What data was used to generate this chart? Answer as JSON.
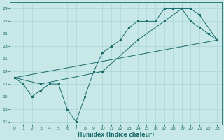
{
  "xlabel": "Humidex (Indice chaleur)",
  "bg_color": "#c8e8e8",
  "grid_color": "#aad4d4",
  "line_color": "#1a6b6b",
  "xlim": [
    -0.5,
    23.5
  ],
  "ylim": [
    10.5,
    30.0
  ],
  "yticks": [
    11,
    13,
    15,
    17,
    19,
    21,
    23,
    25,
    27,
    29
  ],
  "xticks": [
    0,
    1,
    2,
    3,
    4,
    5,
    6,
    7,
    8,
    9,
    10,
    11,
    12,
    13,
    14,
    15,
    16,
    17,
    18,
    19,
    20,
    21,
    22,
    23
  ],
  "line1_x": [
    0,
    1,
    2,
    3,
    4,
    5,
    6,
    7,
    8,
    9,
    10,
    11,
    12,
    13,
    14,
    15,
    16,
    17,
    18,
    19,
    20,
    21,
    22,
    23
  ],
  "line1_y": [
    18,
    17,
    15,
    16,
    17,
    17,
    13,
    11,
    15,
    19,
    22,
    23,
    24,
    26,
    27,
    27,
    27,
    29,
    29,
    29,
    27,
    26,
    25,
    24
  ],
  "line2_x": [
    0,
    3,
    10,
    14,
    17,
    19,
    20,
    21,
    23
  ],
  "line2_y": [
    18,
    17,
    19,
    24,
    27,
    29,
    29,
    28,
    24
  ],
  "line3_x": [
    0,
    23
  ],
  "line3_y": [
    18,
    24
  ],
  "tick_fontsize": 4.5,
  "xlabel_fontsize": 5.5,
  "marker_size": 2.0,
  "line_width": 0.7
}
